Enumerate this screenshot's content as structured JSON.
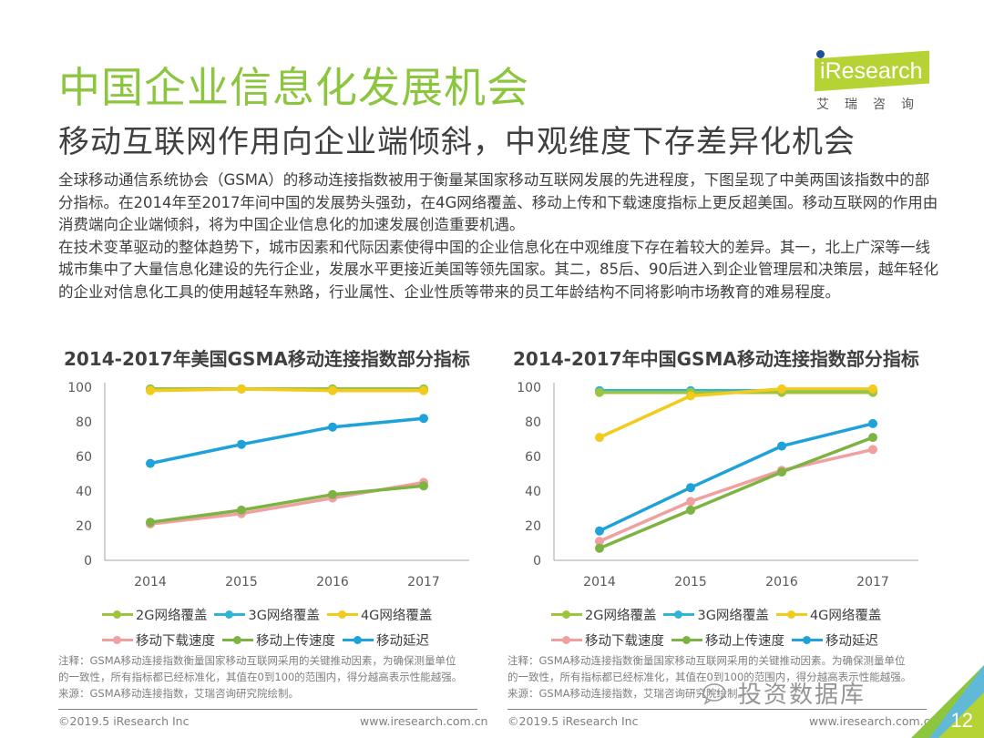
{
  "header": {
    "title": "中国企业信息化发展机会",
    "subtitle": "移动互联网作用向企业端倾斜，中观维度下存差异化机会"
  },
  "logo": {
    "brand": "Research",
    "brand_prefix": "i",
    "cn_name": "艾瑞咨询",
    "color": "#b5d334"
  },
  "body": {
    "paragraphs": [
      "全球移动通信系统协会（GSMA）的移动连接指数被用于衡量某国家移动互联网发展的先进程度，下图呈现了中美两国该指数中的部分指标。在2014年至2017年间中国的发展势头强劲，在4G网络覆盖、移动上传和下载速度指标上更反超美国。移动互联网的作用由消费端向企业端倾斜，将为中国企业信息化的加速发展创造重要机遇。",
      "在技术变革驱动的整体趋势下，城市因素和代际因素使得中国的企业信息化在中观维度下存在着较大的差异。其一，北上广深等一线城市集中了大量信息化建设的先行企业，发展水平更接近美国等领先国家。其二，85后、90后进入到企业管理层和决策层，越年轻化的企业对信息化工具的使用越轻车熟路，行业属性、企业性质等带来的员工年龄结构不同将影响市场教育的难易程度。"
    ]
  },
  "chart_data": [
    {
      "type": "line",
      "title": "2014-2017年美国GSMA移动连接指数部分指标",
      "xlabel": "",
      "ylabel": "",
      "x": [
        "2014",
        "2015",
        "2016",
        "2017"
      ],
      "ylim": [
        0,
        100
      ],
      "yticks": [
        "0",
        "20",
        "40",
        "60",
        "80",
        "100"
      ],
      "grid": false,
      "legend_position": "bottom",
      "series": [
        {
          "name": "2G网络覆盖",
          "color": "#9bc53d",
          "values": [
            99,
            99,
            99,
            99
          ]
        },
        {
          "name": "3G网络覆盖",
          "color": "#2fb5d8",
          "values": [
            99,
            99,
            99,
            99
          ]
        },
        {
          "name": "4G网络覆盖",
          "color": "#f2cb1d",
          "values": [
            98,
            99,
            98,
            98
          ]
        },
        {
          "name": "移动下载速度",
          "color": "#f0a0a0",
          "values": [
            21,
            27,
            36,
            45
          ]
        },
        {
          "name": "移动上传速度",
          "color": "#7cb342",
          "values": [
            22,
            29,
            38,
            43
          ]
        },
        {
          "name": "移动延迟",
          "color": "#1ea2d9",
          "values": [
            56,
            67,
            77,
            82
          ]
        }
      ]
    },
    {
      "type": "line",
      "title": "2014-2017年中国GSMA移动连接指数部分指标",
      "xlabel": "",
      "ylabel": "",
      "x": [
        "2014",
        "2015",
        "2016",
        "2017"
      ],
      "ylim": [
        0,
        100
      ],
      "yticks": [
        "0",
        "20",
        "40",
        "60",
        "80",
        "100"
      ],
      "grid": false,
      "legend_position": "bottom",
      "series": [
        {
          "name": "2G网络覆盖",
          "color": "#9bc53d",
          "values": [
            97,
            97,
            97,
            97
          ]
        },
        {
          "name": "3G网络覆盖",
          "color": "#2fb5d8",
          "values": [
            98,
            98,
            98,
            98
          ]
        },
        {
          "name": "4G网络覆盖",
          "color": "#f2cb1d",
          "values": [
            71,
            95,
            99,
            99
          ]
        },
        {
          "name": "移动下载速度",
          "color": "#f0a0a0",
          "values": [
            11,
            34,
            52,
            64
          ]
        },
        {
          "name": "移动上传速度",
          "color": "#7cb342",
          "values": [
            7,
            29,
            51,
            71
          ]
        },
        {
          "name": "移动延迟",
          "color": "#1ea2d9",
          "values": [
            17,
            42,
            66,
            79
          ]
        }
      ]
    }
  ],
  "notes": {
    "left": [
      "注释：GSMA移动连接指数衡量国家移动互联网采用的关键推动因素，为确保测量单位",
      "的一致性，所有指标都已经标准化，其值在0到100的范围内，得分越高表示性能越强。",
      "来源：GSMA移动连接指数，艾瑞咨询研究院绘制。"
    ],
    "right": [
      "注释：GSMA移动连接指数衡量国家移动互联网采用的关键推动因素。为确保测量单位",
      "的一致性，所有指标都已经标准化，其值在0到100的范围内，得分越高表示性能越强。",
      "来源：GSMA移动连接指数，艾瑞咨询研究院绘制。"
    ]
  },
  "footer": {
    "copyright": "©2019.5 iResearch Inc",
    "website": "www.iresearch.com.cn",
    "page_number": "12"
  },
  "watermark": {
    "text": "投资数据库"
  }
}
